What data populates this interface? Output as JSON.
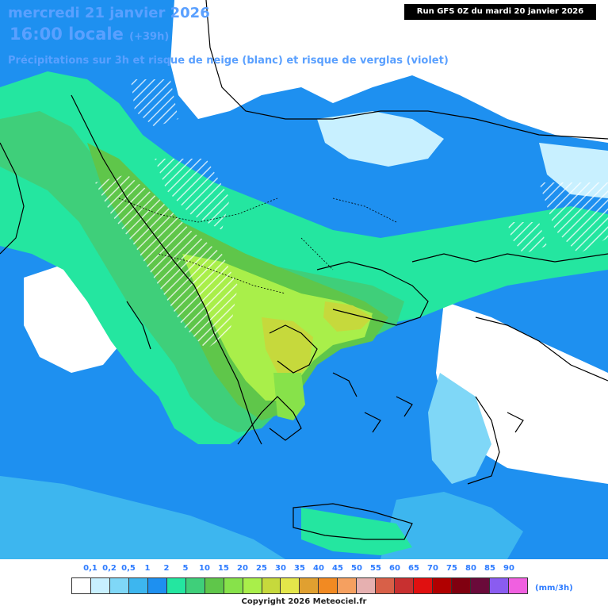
{
  "header": {
    "date_line": "mercredi 21 janvier 2026",
    "time_line": "16:00 locale",
    "lead_time": "(+39h)",
    "subtitle": "Précipitations sur 3h et risque de neige (blanc) et risque de verglas (violet)",
    "run_info": "Run GFS 0Z du mardi 20 janvier 2026"
  },
  "legend": {
    "unit": "(mm/3h)",
    "ticks": [
      "0,1",
      "0,2",
      "0,5",
      "1",
      "2",
      "5",
      "10",
      "15",
      "20",
      "25",
      "30",
      "35",
      "40",
      "45",
      "50",
      "55",
      "60",
      "65",
      "70",
      "75",
      "80",
      "85",
      "90"
    ],
    "colors": [
      "#ffffff",
      "#c8f0ff",
      "#7fd7f7",
      "#3db6ef",
      "#1e90f0",
      "#24e6a0",
      "#3fcf7a",
      "#5fc64a",
      "#87e24a",
      "#a9ef4a",
      "#c6d93c",
      "#e4e64a",
      "#e0a030",
      "#f28a22",
      "#f5a060",
      "#e6b0b0",
      "#d86048",
      "#c83030",
      "#e01010",
      "#b00000",
      "#800010",
      "#6a0a3a",
      "#8a5cf0",
      "#f060e0"
    ]
  },
  "footer": {
    "copyright": "Copyright 2026 Meteociel.fr"
  }
}
